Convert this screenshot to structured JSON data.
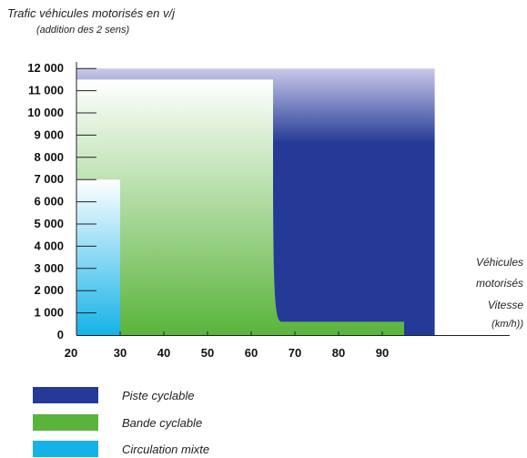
{
  "chart_data": {
    "type": "area",
    "title": "Trafic véhicules motorisés en v/j",
    "subtitle": "(addition des 2 sens)",
    "xlabel": "Vitesse (km/h))",
    "xlabel_lines": [
      "Vitesse",
      "(km/h))"
    ],
    "ylabel": "Véhicules motorisés",
    "ylabel_lines": [
      "Véhicules",
      "motorisés"
    ],
    "x_ticks": [
      "20",
      "30",
      "40",
      "50",
      "60",
      "70",
      "80",
      "90"
    ],
    "y_ticks": [
      "0",
      "1 000",
      "2 000",
      "3 000",
      "4 000",
      "5 000",
      "6 000",
      "7 000",
      "8 000",
      "9 000",
      "10 000",
      "11 000",
      "12 000"
    ],
    "xlim": [
      20,
      102
    ],
    "ylim": [
      0,
      12500
    ],
    "series": [
      {
        "name": "Piste cyclable",
        "color": "#243a96",
        "points": [
          [
            20,
            12000
          ],
          [
            102,
            12000
          ],
          [
            102,
            0
          ],
          [
            20,
            0
          ]
        ]
      },
      {
        "name": "Bande cyclable",
        "color": "#5ab43c",
        "points": [
          [
            20,
            11500
          ],
          [
            65,
            11500
          ],
          [
            65,
            0
          ],
          [
            95,
            0
          ],
          [
            95,
            600
          ],
          [
            67,
            600
          ]
        ]
      },
      {
        "name": "Circulation mixte",
        "color": "#15b2e8",
        "points": [
          [
            20,
            7000
          ],
          [
            30,
            7000
          ],
          [
            30,
            0
          ],
          [
            20,
            0
          ]
        ]
      }
    ],
    "grid": false,
    "legend_position": "bottom-left"
  },
  "legend": [
    {
      "label": "Piste cyclable",
      "color": "#243a96"
    },
    {
      "label": "Bande cyclable",
      "color": "#5ab43c"
    },
    {
      "label": "Circulation mixte",
      "color": "#15b2e8"
    }
  ]
}
